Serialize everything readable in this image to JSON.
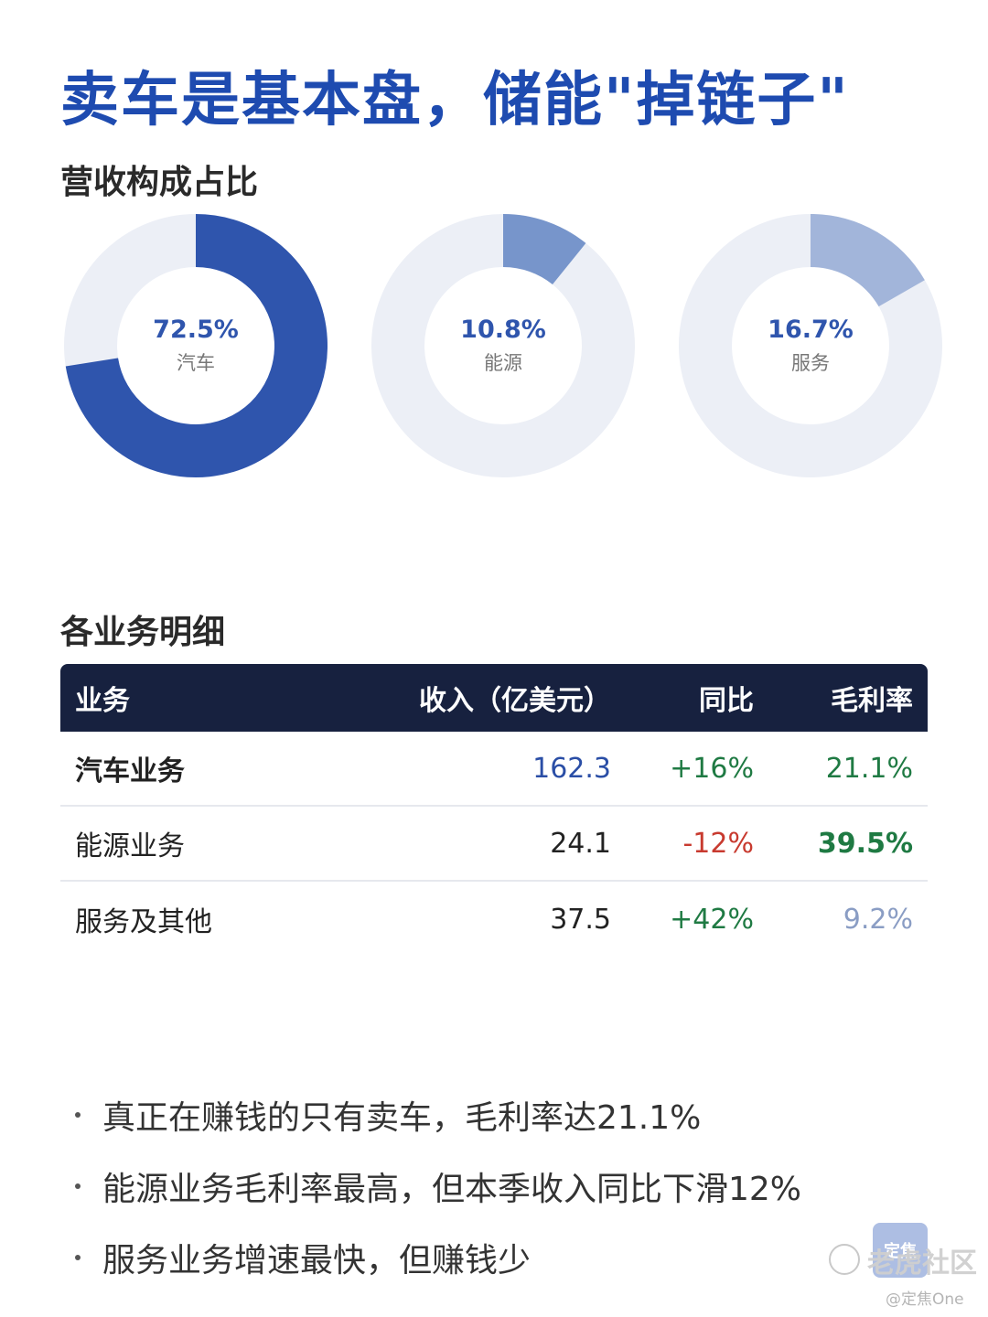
{
  "title": "卖车是基本盘，储能\"掉链子\"",
  "section1_title": "营收构成占比",
  "section2_title": "各业务明细",
  "chart_data": {
    "type": "pie",
    "subtype": "donut",
    "slices": [
      {
        "label": "汽车",
        "value": 72.5,
        "value_text": "72.5%",
        "color": "#2f55ad"
      },
      {
        "label": "能源",
        "value": 10.8,
        "value_text": "10.8%",
        "color": "#7795cb"
      },
      {
        "label": "服务",
        "value": 16.7,
        "value_text": "16.7%",
        "color": "#a2b5da"
      }
    ],
    "track_color": "#eceff6"
  },
  "table": {
    "headers": [
      "业务",
      "收入（亿美元）",
      "同比",
      "毛利率"
    ],
    "rows": [
      {
        "name": "汽车业务",
        "revenue": "162.3",
        "yoy": "+16%",
        "margin": "21.1%"
      },
      {
        "name": "能源业务",
        "revenue": "24.1",
        "yoy": "-12%",
        "margin": "39.5%"
      },
      {
        "name": "服务及其他",
        "revenue": "37.5",
        "yoy": "+42%",
        "margin": "9.2%"
      }
    ]
  },
  "bullets": [
    "真正在赚钱的只有卖车，毛利率达21.1%",
    "能源业务毛利率最高，但本季收入同比下滑12%",
    "服务业务增速最快，但赚钱少"
  ],
  "watermark": {
    "badge": "定焦",
    "community": "老虎社区",
    "handle": "@定焦One"
  },
  "colors": {
    "title": "#1e4bb0",
    "header_bg": "#17213f",
    "positive": "#1f7a43",
    "negative": "#c83a2f"
  }
}
